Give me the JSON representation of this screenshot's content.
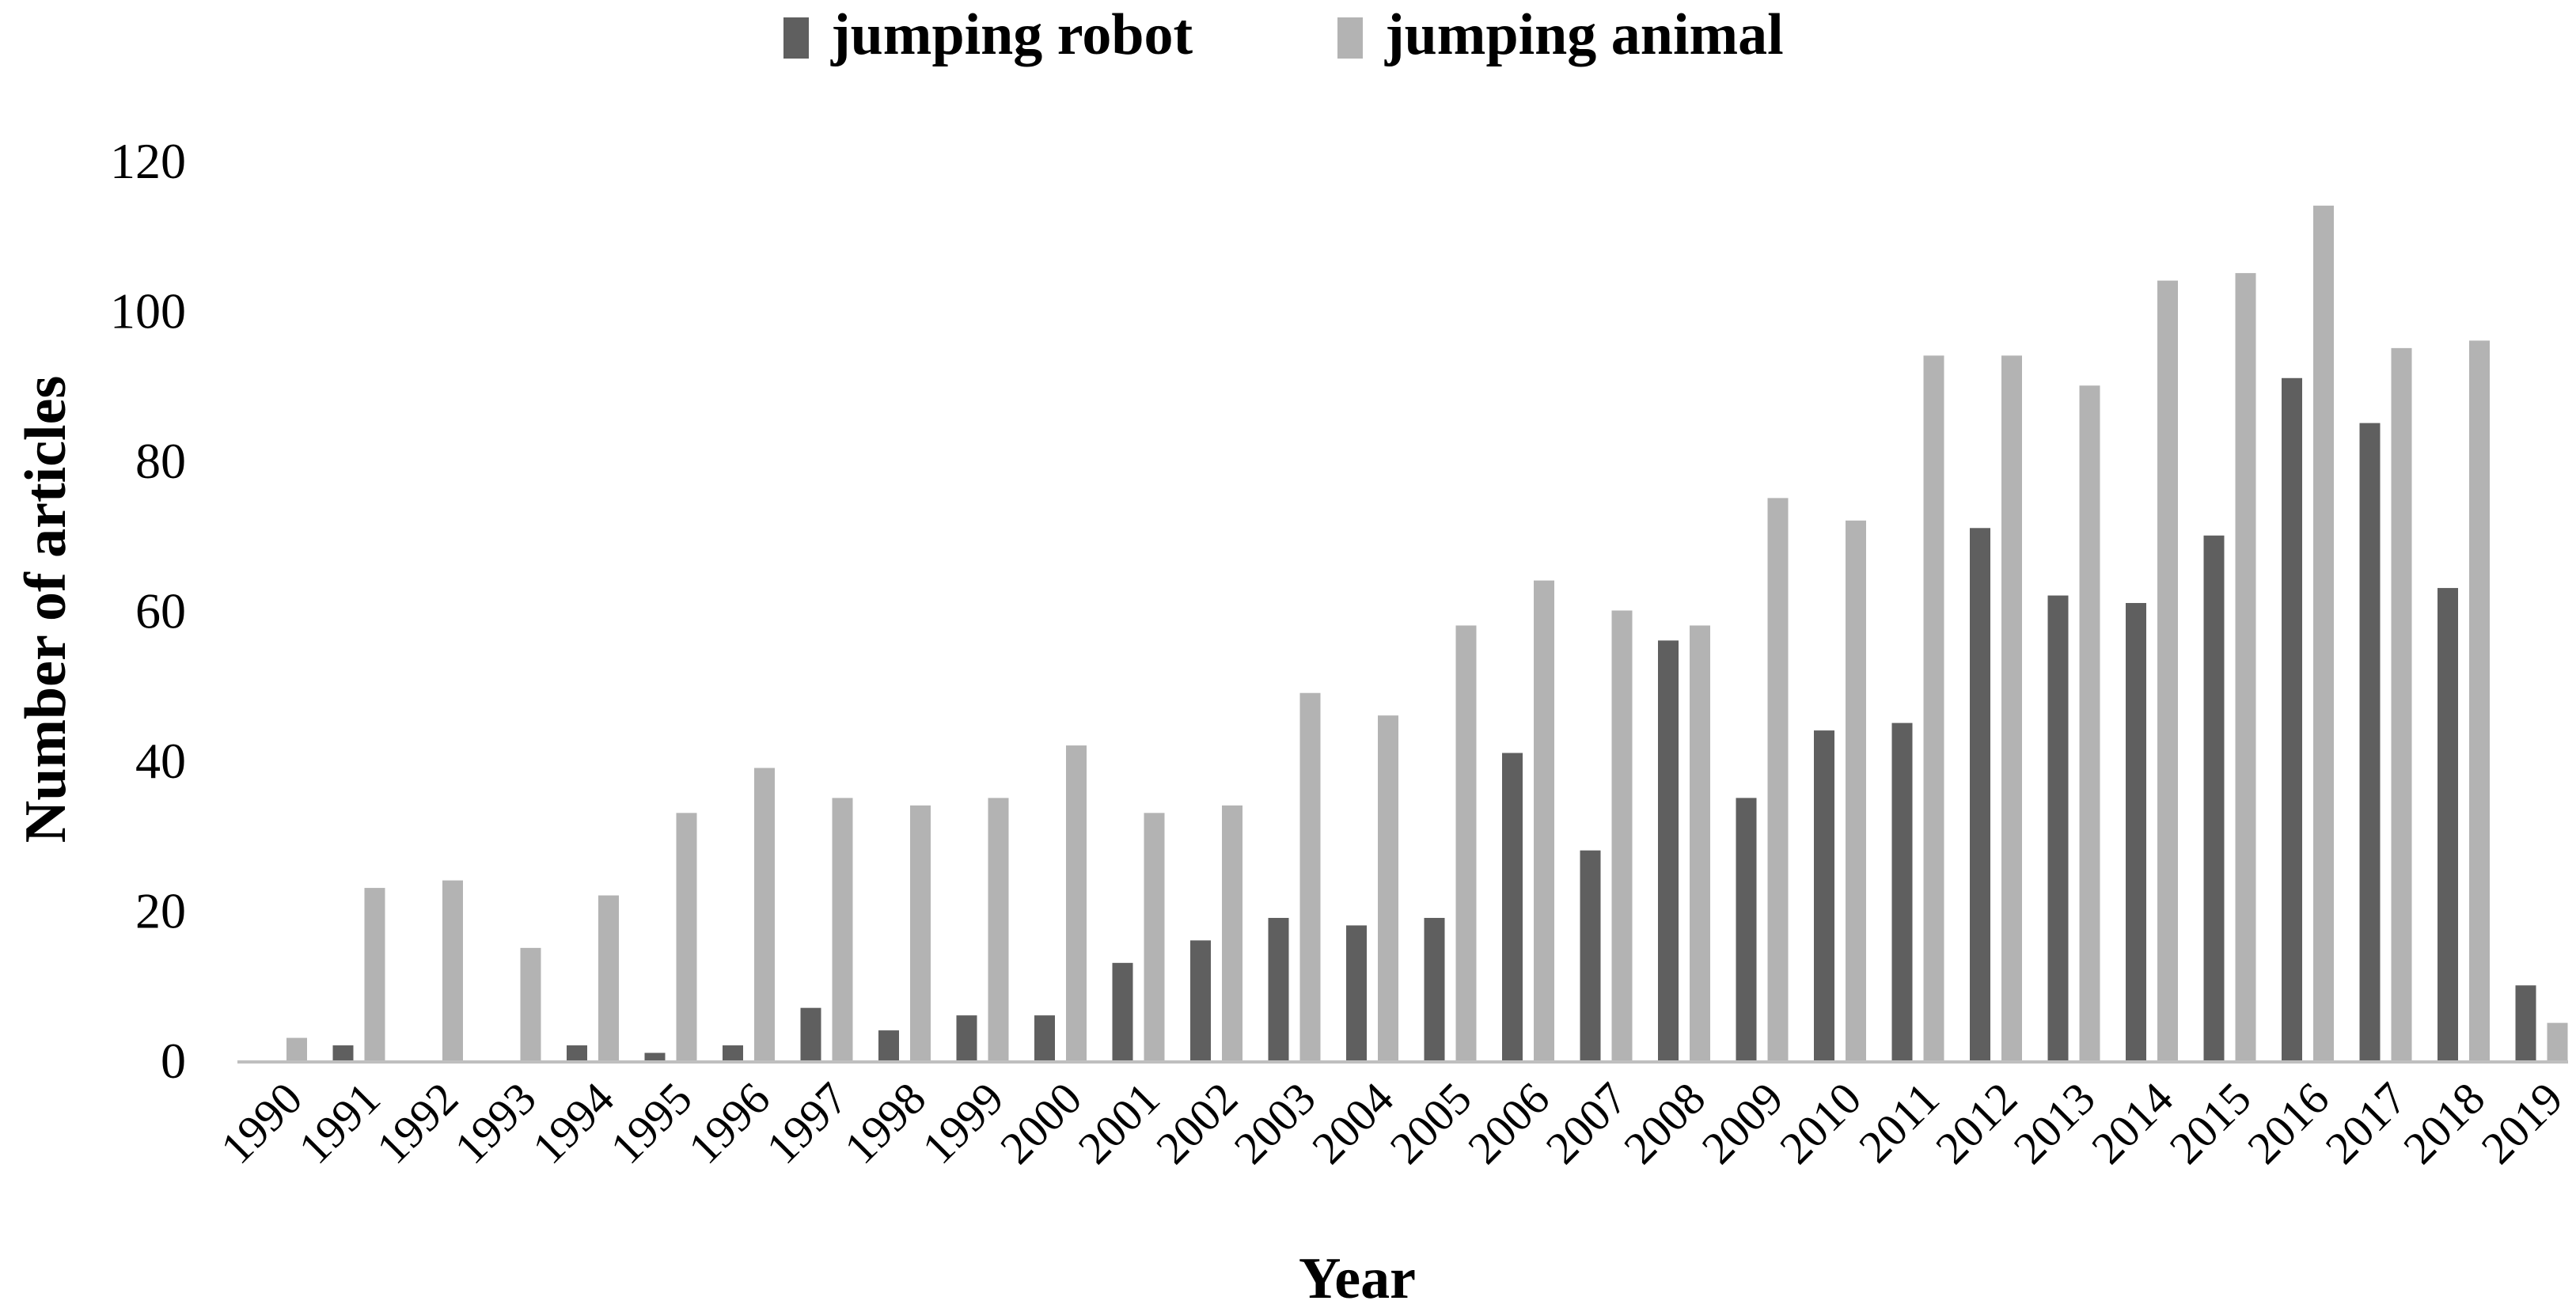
{
  "chart_data": {
    "type": "bar",
    "title": "",
    "xlabel": "Year",
    "ylabel": "Number of articles",
    "ylim": [
      0,
      120
    ],
    "yticks": [
      0,
      20,
      40,
      60,
      80,
      100,
      120
    ],
    "grid": false,
    "legend_position": "top-center",
    "categories": [
      "1990",
      "1991",
      "1992",
      "1993",
      "1994",
      "1995",
      "1996",
      "1997",
      "1998",
      "1999",
      "2000",
      "2001",
      "2002",
      "2003",
      "2004",
      "2005",
      "2006",
      "2007",
      "2008",
      "2009",
      "2010",
      "2011",
      "2012",
      "2013",
      "2014",
      "2015",
      "2016",
      "2017",
      "2018",
      "2019"
    ],
    "series": [
      {
        "name": "jumping robot",
        "color": "#5f5f5f",
        "values": [
          0,
          2,
          0,
          0,
          2,
          1,
          2,
          7,
          4,
          6,
          6,
          13,
          16,
          19,
          18,
          19,
          41,
          28,
          56,
          35,
          44,
          45,
          71,
          62,
          61,
          70,
          91,
          85,
          63,
          10
        ]
      },
      {
        "name": "jumping animal",
        "color": "#b3b3b3",
        "values": [
          3,
          23,
          24,
          15,
          22,
          33,
          39,
          35,
          34,
          35,
          42,
          33,
          34,
          49,
          46,
          58,
          64,
          60,
          58,
          75,
          72,
          94,
          94,
          90,
          104,
          105,
          114,
          95,
          96,
          5
        ]
      }
    ]
  }
}
